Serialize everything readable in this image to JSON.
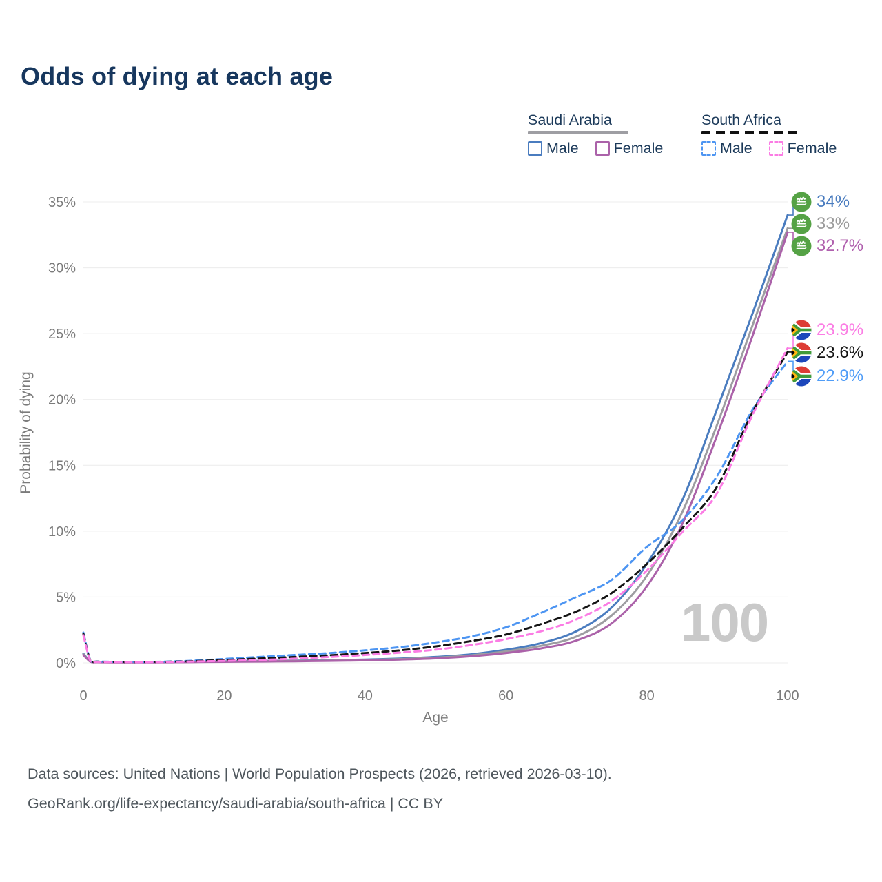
{
  "title": "Odds of dying at each age",
  "watermark": "100",
  "legend": {
    "groups": [
      {
        "label": "Saudi Arabia",
        "style": "solid",
        "underline_color": "#9e9ea3",
        "items": [
          {
            "label": "Male",
            "color": "#4a7cbf"
          },
          {
            "label": "Female",
            "color": "#ab62a9"
          }
        ]
      },
      {
        "label": "South Africa",
        "style": "dashed",
        "underline_color": "#111111",
        "items": [
          {
            "label": "Male",
            "color": "#4d95f2"
          },
          {
            "label": "Female",
            "color": "#fb7ce4"
          }
        ]
      }
    ]
  },
  "annotations": [
    {
      "label": "34%",
      "series": "Saudi Arabia Male",
      "flag": "saudi-arabia",
      "color": "#4a7cbf",
      "value": 34.0
    },
    {
      "label": "33%",
      "series": "Saudi Arabia Both sexes",
      "flag": "saudi-arabia",
      "color": "#9b9b9b",
      "value": 33.0
    },
    {
      "label": "32.7%",
      "series": "Saudi Arabia Female",
      "flag": "saudi-arabia",
      "color": "#b060ae",
      "value": 32.7
    },
    {
      "label": "23.9%",
      "series": "South Africa Female",
      "flag": "south-africa",
      "color": "#fb7ce4",
      "value": 23.9
    },
    {
      "label": "23.6%",
      "series": "South Africa Both sexes",
      "flag": "south-africa",
      "color": "#141414",
      "value": 23.6
    },
    {
      "label": "22.9%",
      "series": "South Africa Male",
      "flag": "south-africa",
      "color": "#4f9cf7",
      "value": 22.9
    }
  ],
  "chart_data": {
    "type": "line",
    "title": "Odds of dying at each age",
    "xlabel": "Age",
    "ylabel": "Probability of dying",
    "xlim": [
      0,
      100
    ],
    "ylim": [
      0,
      35
    ],
    "grid": "horizontal",
    "xticks": [
      {
        "value": 0,
        "label": "0"
      },
      {
        "value": 20,
        "label": "20"
      },
      {
        "value": 40,
        "label": "40"
      },
      {
        "value": 60,
        "label": "60"
      },
      {
        "value": 80,
        "label": "80"
      },
      {
        "value": 100,
        "label": "100"
      }
    ],
    "yticks": [
      {
        "value": 0,
        "label": "0%"
      },
      {
        "value": 5,
        "label": "5%"
      },
      {
        "value": 10,
        "label": "10%"
      },
      {
        "value": 15,
        "label": "15%"
      },
      {
        "value": 20,
        "label": "20%"
      },
      {
        "value": 25,
        "label": "25%"
      },
      {
        "value": 30,
        "label": "30%"
      },
      {
        "value": 35,
        "label": "35%"
      }
    ],
    "ages": [
      0,
      1,
      2,
      5,
      10,
      15,
      20,
      25,
      30,
      35,
      40,
      45,
      50,
      55,
      60,
      65,
      70,
      75,
      80,
      85,
      90,
      95,
      100
    ],
    "series": [
      {
        "id": "saudi-arabia-male",
        "name": "Saudi Arabia Male",
        "color": "#4a7cbf",
        "dashed": false,
        "values": [
          0.7,
          0.12,
          0.07,
          0.05,
          0.05,
          0.08,
          0.12,
          0.15,
          0.17,
          0.2,
          0.25,
          0.33,
          0.45,
          0.65,
          1.0,
          1.5,
          2.4,
          4.2,
          7.5,
          12.3,
          19.3,
          26.5,
          34.0
        ],
        "end_label": "34%"
      },
      {
        "id": "saudi-arabia-both",
        "name": "Saudi Arabia Both sexes",
        "color": "#9d9da1",
        "dashed": false,
        "values": [
          0.65,
          0.1,
          0.06,
          0.045,
          0.045,
          0.07,
          0.1,
          0.13,
          0.15,
          0.18,
          0.22,
          0.29,
          0.4,
          0.57,
          0.87,
          1.3,
          2.0,
          3.6,
          6.6,
          11.4,
          18.1,
          25.6,
          33.0
        ],
        "end_label": "33%"
      },
      {
        "id": "saudi-arabia-female",
        "name": "Saudi Arabia Female",
        "color": "#ab62a9",
        "dashed": false,
        "values": [
          0.6,
          0.09,
          0.05,
          0.04,
          0.04,
          0.06,
          0.08,
          0.1,
          0.12,
          0.15,
          0.19,
          0.25,
          0.34,
          0.5,
          0.75,
          1.1,
          1.7,
          3.0,
          5.8,
          10.5,
          17.3,
          24.8,
          32.7
        ],
        "end_label": "32.7%"
      },
      {
        "id": "south-africa-male",
        "name": "South Africa Male",
        "color": "#4d95f2",
        "dashed": true,
        "values": [
          2.3,
          0.18,
          0.1,
          0.08,
          0.08,
          0.15,
          0.3,
          0.45,
          0.6,
          0.75,
          0.95,
          1.2,
          1.55,
          2.0,
          2.7,
          3.8,
          5.0,
          6.3,
          8.8,
          10.8,
          14.2,
          19.2,
          22.9
        ],
        "end_label": "22.9%"
      },
      {
        "id": "south-africa-both",
        "name": "South Africa Both sexes",
        "color": "#141414",
        "dashed": true,
        "values": [
          2.2,
          0.16,
          0.09,
          0.07,
          0.07,
          0.12,
          0.22,
          0.33,
          0.45,
          0.58,
          0.75,
          0.95,
          1.25,
          1.65,
          2.15,
          2.95,
          3.9,
          5.3,
          7.5,
          10.2,
          13.4,
          19.0,
          23.6
        ],
        "end_label": "23.6%"
      },
      {
        "id": "south-africa-female",
        "name": "South Africa Female",
        "color": "#fb7ce4",
        "dashed": true,
        "values": [
          2.1,
          0.14,
          0.08,
          0.06,
          0.06,
          0.1,
          0.15,
          0.22,
          0.32,
          0.45,
          0.6,
          0.78,
          1.0,
          1.35,
          1.8,
          2.4,
          3.3,
          4.7,
          7.0,
          9.9,
          12.9,
          18.8,
          23.9
        ],
        "end_label": "23.9%"
      }
    ]
  },
  "footer": {
    "line1": "Data sources: United Nations | World Population Prospects (2026, retrieved 2026-03-10).",
    "line2": "GeoRank.org/life-expectancy/saudi-arabia/south-africa | CC BY"
  }
}
